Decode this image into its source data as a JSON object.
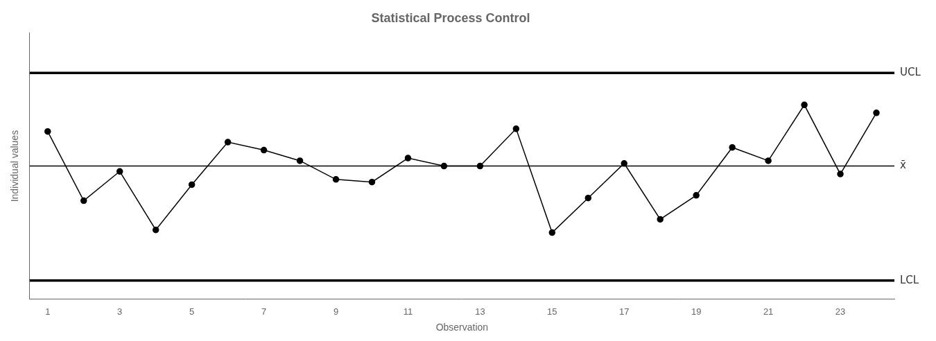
{
  "chart_data": {
    "type": "line",
    "title": "Statistical Process Control",
    "xlabel": "Observation",
    "ylabel": "Individual values",
    "x": [
      1,
      2,
      3,
      4,
      5,
      6,
      7,
      8,
      9,
      10,
      11,
      12,
      13,
      14,
      15,
      16,
      17,
      18,
      19,
      20,
      21,
      22,
      23,
      24
    ],
    "series": [
      {
        "values": [
          6.8,
          4.2,
          5.3,
          3.1,
          4.8,
          6.4,
          6.1,
          5.7,
          5.0,
          4.9,
          5.8,
          5.5,
          5.5,
          6.9,
          3.0,
          4.3,
          5.6,
          3.5,
          4.4,
          6.2,
          5.7,
          7.8,
          5.2,
          7.5
        ],
        "color": "#000000",
        "marker": "circle",
        "line_style": "solid"
      }
    ],
    "hlines": [
      {
        "value": 9.0,
        "label": "UCL",
        "color": "#000000"
      },
      {
        "value": 1.2,
        "label": "LCL",
        "color": "#000000"
      },
      {
        "value": 5.5,
        "label": "x̄",
        "color": "#000000"
      }
    ],
    "xlim": [
      0.5,
      24.5
    ],
    "ylim": [
      0.5,
      10.5
    ],
    "xticks": [
      1,
      3,
      5,
      7,
      9,
      11,
      13,
      15,
      17,
      19,
      21,
      23
    ],
    "yticks": [],
    "grid": false,
    "tick_labels": "x"
  }
}
